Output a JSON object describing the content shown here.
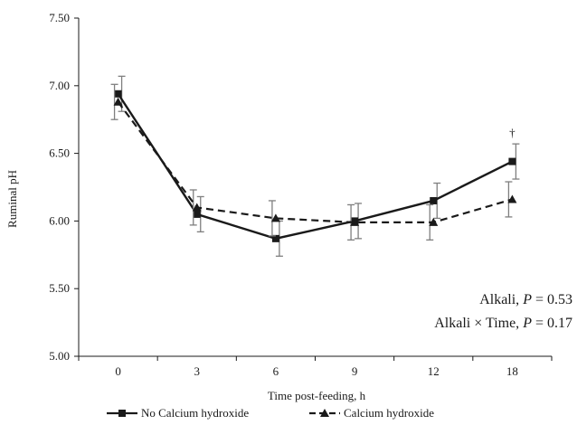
{
  "chart_data": {
    "type": "line",
    "xlabel": "Time post-feeding, h",
    "ylabel": "Ruminal pH",
    "categories": [
      "0",
      "3",
      "6",
      "9",
      "12",
      "18"
    ],
    "ylim": [
      5.0,
      7.5
    ],
    "yticks": [
      "5.00",
      "5.50",
      "6.00",
      "6.50",
      "7.00",
      "7.50"
    ],
    "grid": false,
    "legend_position": "bottom",
    "series": [
      {
        "name": "No Calcium hydroxide",
        "marker": "square",
        "line_style": "solid",
        "values": [
          6.94,
          6.05,
          5.87,
          6.0,
          6.15,
          6.44
        ],
        "error": [
          0.13,
          0.13,
          0.13,
          0.13,
          0.13,
          0.13
        ]
      },
      {
        "name": "Calcium hydroxide",
        "marker": "triangle",
        "line_style": "dashed",
        "values": [
          6.88,
          6.1,
          6.02,
          5.99,
          5.99,
          6.16
        ],
        "error": [
          0.13,
          0.13,
          0.13,
          0.13,
          0.13,
          0.13
        ]
      }
    ],
    "significance_marker": {
      "category": "18",
      "symbol": "†"
    },
    "annotations": [
      {
        "prefix": "Alkali, ",
        "italic": "P",
        "suffix": " = 0.53"
      },
      {
        "prefix": "Alkali × Time, ",
        "italic": "P",
        "suffix": " = 0.17"
      }
    ],
    "colors": {
      "line": "#1a1a1a",
      "error_bar": "#7f7f7f"
    }
  }
}
